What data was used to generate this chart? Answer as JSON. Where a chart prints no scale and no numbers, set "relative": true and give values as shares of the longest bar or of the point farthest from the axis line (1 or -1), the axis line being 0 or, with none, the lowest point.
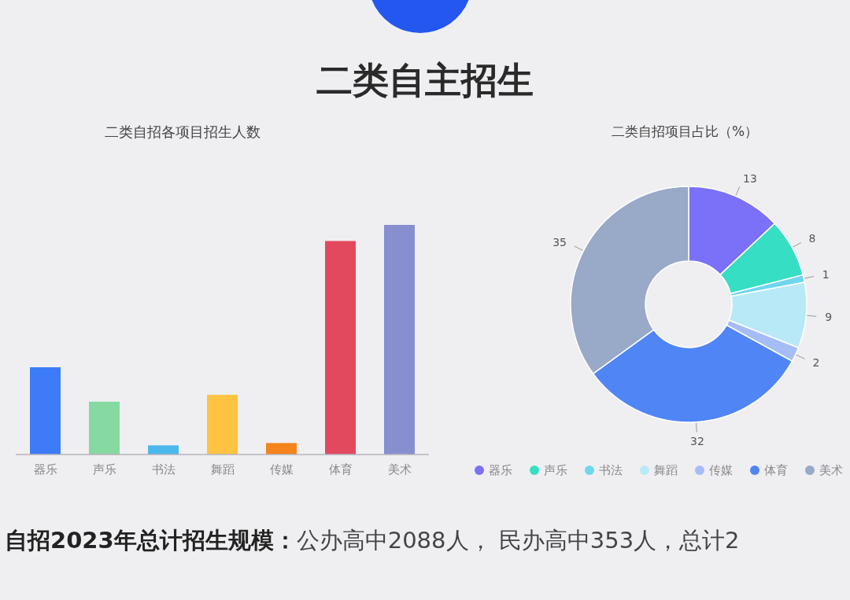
{
  "chart_data": [
    {
      "type": "other",
      "title": "二类自主招生"
    },
    {
      "type": "bar",
      "title": "二类自招各项目招生人数",
      "categories": [
        "器乐",
        "声乐",
        "书法",
        "舞蹈",
        "传媒",
        "体育",
        "美术"
      ],
      "values": [
        0.38,
        0.23,
        0.04,
        0.26,
        0.05,
        0.93,
        1
      ],
      "colors": [
        "#3d7bf7",
        "#86d9a0",
        "#4bb8ec",
        "#fec340",
        "#f5841c",
        "#e2495e",
        "#878fcf"
      ],
      "relative": true
    },
    {
      "type": "donut",
      "title": "二类自招项目占比（%）",
      "categories": [
        "器乐",
        "声乐",
        "书法",
        "舞蹈",
        "传媒",
        "体育",
        "美术"
      ],
      "values": [
        13,
        8,
        1,
        9,
        2,
        32,
        35
      ],
      "colors": [
        "#7b70f8",
        "#36dfc3",
        "#6fd6f0",
        "#b8e9f6",
        "#a5bcf7",
        "#5085f6",
        "#99a9c8"
      ],
      "data_labels": true,
      "legend": "bottom"
    },
    {
      "type": "other",
      "annotations": [
        "自招2023年总计招生规模：",
        "公办高中2088人， 民办高中353人，总计2"
      ]
    }
  ]
}
